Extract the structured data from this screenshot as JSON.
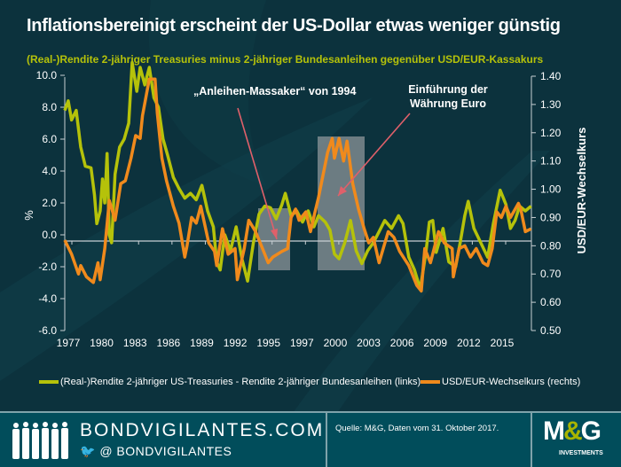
{
  "header": {
    "title": "Inflationsbereinigt erscheint der US-Dollar etwas weniger günstig",
    "subtitle": "(Real-)Rendite 2-jähriger  Treasuries minus 2-jähriger Bundesanleihen gegenüber USD/EUR-Kassakurs"
  },
  "chart_data": {
    "type": "line",
    "x_tick_labels": [
      "1977",
      "1980",
      "1983",
      "1986",
      "1989",
      "1992",
      "1995",
      "1997",
      "2000",
      "2003",
      "2006",
      "2009",
      "2012",
      "2015"
    ],
    "xlim": [
      1977,
      2017.83
    ],
    "left_axis": {
      "label": "%",
      "ylim": [
        -6,
        10
      ],
      "ticks": [
        "-6.0",
        "-4.0",
        "-2.0",
        "0.0",
        "2.0",
        "4.0",
        "6.0",
        "8.0",
        "10.0"
      ]
    },
    "right_axis": {
      "label": "USD/EUR-Wechselkurs",
      "ylim": [
        0.5,
        1.4
      ],
      "ticks": [
        "0.50",
        "0.60",
        "0.70",
        "0.80",
        "0.90",
        "1.00",
        "1.10",
        "1.20",
        "1.30",
        "1.40"
      ]
    },
    "grid": false,
    "legend_position": "bottom",
    "series": [
      {
        "name": "(Real-)Rendite 2-jähriger US-Treasuries - Rendite 2-jähriger Bundesanleihen (links)",
        "axis": "left",
        "color": "#b5c20a",
        "points": [
          [
            1977,
            7.8
          ],
          [
            1977.3,
            8.4
          ],
          [
            1977.6,
            7.2
          ],
          [
            1978,
            7.8
          ],
          [
            1978.4,
            5.5
          ],
          [
            1978.8,
            4.3
          ],
          [
            1979.3,
            4.2
          ],
          [
            1979.6,
            2.5
          ],
          [
            1979.8,
            0.7
          ],
          [
            1980.1,
            1.5
          ],
          [
            1980.3,
            3.5
          ],
          [
            1980.5,
            2
          ],
          [
            1980.7,
            5.1
          ],
          [
            1980.9,
            0
          ],
          [
            1981.1,
            -0.5
          ],
          [
            1981.4,
            3.8
          ],
          [
            1981.8,
            5.5
          ],
          [
            1982.2,
            6
          ],
          [
            1982.6,
            7
          ],
          [
            1982.9,
            10.8
          ],
          [
            1983.3,
            9
          ],
          [
            1983.6,
            10.5
          ],
          [
            1984,
            9.4
          ],
          [
            1984.4,
            10.5
          ],
          [
            1984.8,
            8.6
          ],
          [
            1985.2,
            8
          ],
          [
            1985.6,
            6
          ],
          [
            1986,
            5
          ],
          [
            1986.5,
            3.6
          ],
          [
            1987,
            2.9
          ],
          [
            1987.5,
            2.3
          ],
          [
            1988,
            2.6
          ],
          [
            1988.5,
            2.2
          ],
          [
            1989,
            3.1
          ],
          [
            1989.5,
            1.5
          ],
          [
            1990,
            0.5
          ],
          [
            1990.3,
            -1.7
          ],
          [
            1990.6,
            -2.2
          ],
          [
            1991,
            0
          ],
          [
            1991.5,
            -1
          ],
          [
            1992,
            0.5
          ],
          [
            1992.5,
            -1.5
          ],
          [
            1993,
            -2.9
          ],
          [
            1993.5,
            -0.5
          ],
          [
            1994,
            1.3
          ],
          [
            1994.5,
            1.8
          ],
          [
            1995,
            1.7
          ],
          [
            1995.5,
            1
          ],
          [
            1996,
            1.9
          ],
          [
            1996.3,
            2.6
          ],
          [
            1996.8,
            1.2
          ],
          [
            1997.3,
            1.5
          ],
          [
            1997.8,
            0.8
          ],
          [
            1998.3,
            1.5
          ],
          [
            1998.8,
            0.5
          ],
          [
            1999.2,
            1.2
          ],
          [
            1999.8,
            0.8
          ],
          [
            2000.2,
            0.3
          ],
          [
            2000.6,
            -1.2
          ],
          [
            2001,
            -1.5
          ],
          [
            2001.5,
            -0.5
          ],
          [
            2002,
            0.9
          ],
          [
            2002.5,
            -1
          ],
          [
            2003,
            -1.8
          ],
          [
            2003.5,
            -1
          ],
          [
            2004,
            -0.5
          ],
          [
            2004.5,
            0.2
          ],
          [
            2005,
            0.9
          ],
          [
            2005.6,
            0.4
          ],
          [
            2006.2,
            1.2
          ],
          [
            2006.6,
            0.7
          ],
          [
            2007.1,
            -1.4
          ],
          [
            2007.6,
            -2.2
          ],
          [
            2008.1,
            -3.4
          ],
          [
            2008.6,
            -1.1
          ],
          [
            2008.9,
            0.8
          ],
          [
            2009.2,
            0.9
          ],
          [
            2009.5,
            -1.1
          ],
          [
            2010.1,
            0.4
          ],
          [
            2010.6,
            -1.7
          ],
          [
            2011.2,
            -2
          ],
          [
            2011.6,
            -0.5
          ],
          [
            2012,
            1.2
          ],
          [
            2012.3,
            2.1
          ],
          [
            2012.8,
            0.4
          ],
          [
            2013.2,
            -0.2
          ],
          [
            2014,
            -1.4
          ],
          [
            2014.5,
            0.7
          ],
          [
            2015.1,
            2.8
          ],
          [
            2015.6,
            1.9
          ],
          [
            2016,
            0.4
          ],
          [
            2016.4,
            0.9
          ],
          [
            2016.8,
            1.8
          ],
          [
            2017.3,
            1.5
          ],
          [
            2017.8,
            1.8
          ]
        ]
      },
      {
        "name": "USD/EUR-Wechselkurs (rechts)",
        "axis": "right",
        "color": "#f08a1c",
        "points": [
          [
            1977,
            0.82
          ],
          [
            1977.6,
            0.77
          ],
          [
            1978.2,
            0.7
          ],
          [
            1978.4,
            0.73
          ],
          [
            1978.9,
            0.69
          ],
          [
            1979.5,
            0.67
          ],
          [
            1979.9,
            0.74
          ],
          [
            1980.1,
            0.68
          ],
          [
            1980.5,
            0.79
          ],
          [
            1980.9,
            0.96
          ],
          [
            1981.4,
            0.89
          ],
          [
            1981.9,
            1.02
          ],
          [
            1982.3,
            1.03
          ],
          [
            1982.8,
            1.11
          ],
          [
            1983.2,
            1.19
          ],
          [
            1983.6,
            1.18
          ],
          [
            1983.8,
            1.26
          ],
          [
            1984.4,
            1.39
          ],
          [
            1984.9,
            1.39
          ],
          [
            1985.1,
            1.27
          ],
          [
            1985.5,
            1.11
          ],
          [
            1985.9,
            1.03
          ],
          [
            1986.5,
            0.94
          ],
          [
            1987,
            0.88
          ],
          [
            1987.5,
            0.76
          ],
          [
            1987.7,
            0.8
          ],
          [
            1988.1,
            0.9
          ],
          [
            1988.5,
            0.88
          ],
          [
            1988.9,
            0.94
          ],
          [
            1989.6,
            0.81
          ],
          [
            1990.1,
            0.78
          ],
          [
            1990.3,
            0.73
          ],
          [
            1990.8,
            0.86
          ],
          [
            1991.3,
            0.77
          ],
          [
            1991.9,
            0.79
          ],
          [
            1992.1,
            0.68
          ],
          [
            1992.7,
            0.79
          ],
          [
            1993.1,
            0.89
          ],
          [
            1993.7,
            0.85
          ],
          [
            1994.3,
            0.79
          ],
          [
            1994.8,
            0.74
          ],
          [
            1995.2,
            0.76
          ],
          [
            1996,
            0.78
          ],
          [
            1996.5,
            0.79
          ],
          [
            1996.8,
            0.9
          ],
          [
            1997.2,
            0.93
          ],
          [
            1997.5,
            0.89
          ],
          [
            1998.1,
            0.92
          ],
          [
            1998.5,
            0.85
          ],
          [
            1998.9,
            0.92
          ],
          [
            1999.2,
            0.97
          ],
          [
            1999.6,
            1.05
          ],
          [
            2000,
            1.13
          ],
          [
            2000.4,
            1.18
          ],
          [
            2000.6,
            1.11
          ],
          [
            2001,
            1.18
          ],
          [
            2001.4,
            1.1
          ],
          [
            2001.7,
            1.17
          ],
          [
            2002.2,
            1.02
          ],
          [
            2002.7,
            0.93
          ],
          [
            2003.2,
            0.86
          ],
          [
            2003.6,
            0.81
          ],
          [
            2004,
            0.83
          ],
          [
            2004.5,
            0.74
          ],
          [
            2005.3,
            0.85
          ],
          [
            2005.8,
            0.83
          ],
          [
            2006.3,
            0.78
          ],
          [
            2007.1,
            0.73
          ],
          [
            2007.8,
            0.66
          ],
          [
            2008.2,
            0.64
          ],
          [
            2008.5,
            0.79
          ],
          [
            2009,
            0.74
          ],
          [
            2009.7,
            0.85
          ],
          [
            2010.2,
            0.81
          ],
          [
            2010.9,
            0.79
          ],
          [
            2011,
            0.69
          ],
          [
            2011.5,
            0.79
          ],
          [
            2012,
            0.8
          ],
          [
            2012.5,
            0.76
          ],
          [
            2013,
            0.79
          ],
          [
            2013.6,
            0.74
          ],
          [
            2014,
            0.73
          ],
          [
            2014.4,
            0.79
          ],
          [
            2014.8,
            0.92
          ],
          [
            2015.2,
            0.9
          ],
          [
            2015.6,
            0.94
          ],
          [
            2016,
            0.9
          ],
          [
            2016.7,
            0.95
          ],
          [
            2016.9,
            0.93
          ],
          [
            2017.3,
            0.85
          ],
          [
            2017.8,
            0.86
          ]
        ]
      }
    ],
    "annotations": [
      {
        "text": "„Anleihen-Massaker“ von 1994",
        "period": [
          1994.2,
          1997
        ]
      },
      {
        "text_lines": [
          "Einführung der",
          "Währung Euro"
        ],
        "period": [
          1999.4,
          2003.5
        ]
      }
    ]
  },
  "footer": {
    "brand": "BONDVIGILANTES.COM",
    "handle": "@ BONDVIGILANTES",
    "source": "Quelle: M&G,  Daten vom 31. Oktober 2017.",
    "logo": "M&G INVESTMENTS"
  }
}
